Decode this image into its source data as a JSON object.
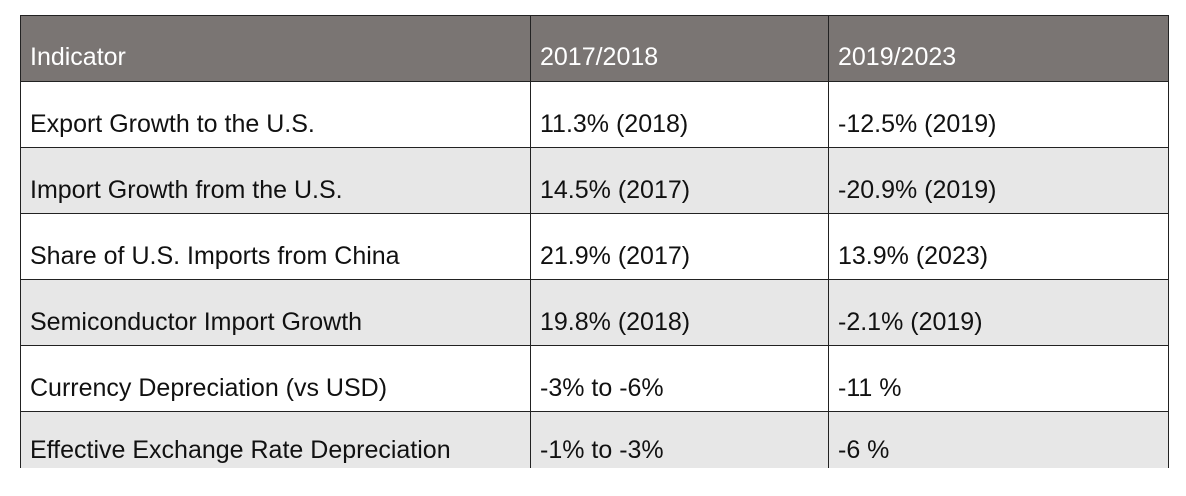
{
  "table": {
    "headers": [
      "Indicator",
      "2017/2018",
      "2019/2023"
    ],
    "rows": [
      [
        "Export Growth to the U.S.",
        "11.3% (2018)",
        "-12.5% (2019)"
      ],
      [
        "Import Growth from the U.S.",
        "14.5% (2017)",
        "-20.9% (2019)"
      ],
      [
        "Share of U.S. Imports from China",
        "21.9% (2017)",
        "13.9% (2023)"
      ],
      [
        "Semiconductor Import Growth",
        "19.8% (2018)",
        "-2.1% (2019)"
      ],
      [
        "Currency Depreciation (vs USD)",
        "-3% to -6%",
        "-11 %"
      ],
      [
        "Effective Exchange Rate Depreciation",
        "-1% to -3%",
        "-6 %"
      ]
    ]
  },
  "colors": {
    "header_bg": "#7a7573",
    "header_text": "#ffffff",
    "row_alt_bg": "#e7e7e7",
    "border": "#222222"
  }
}
